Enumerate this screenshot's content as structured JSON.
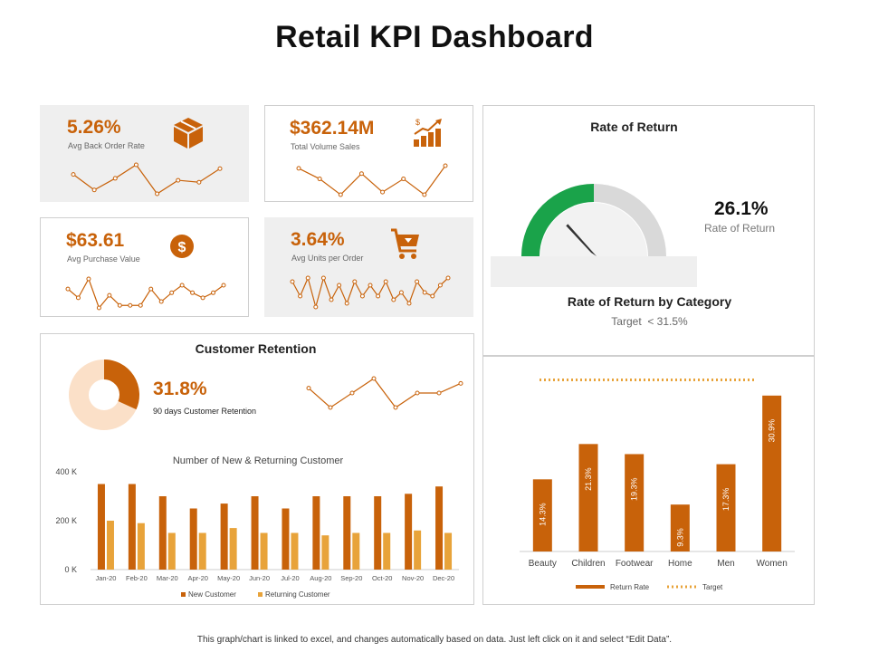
{
  "title": "Retail KPI Dashboard",
  "colors": {
    "accent": "#c8620a",
    "accent_light": "#e8a33a",
    "green": "#1aa34a",
    "gauge_gray": "#d9d9d9",
    "card_gray": "#efefef"
  },
  "kpis": [
    {
      "value": "5.26%",
      "label": "Avg Back Order Rate",
      "icon": "box-icon",
      "spark": [
        30,
        22,
        28,
        35,
        20,
        27,
        26,
        33
      ]
    },
    {
      "value": "$362.14M",
      "label": "Total Volume Sales",
      "icon": "growth-bars-icon",
      "spark": [
        32,
        28,
        22,
        30,
        23,
        28,
        22,
        33
      ]
    },
    {
      "value": "$63.61",
      "label": "Avg Purchase Value",
      "icon": "dollar-coin-icon",
      "spark": [
        25,
        18,
        33,
        10,
        20,
        12,
        12,
        12,
        25,
        15,
        22,
        28,
        22,
        18,
        22,
        28
      ]
    },
    {
      "value": "3.64%",
      "label": "Avg Units per Order",
      "icon": "shopping-cart-icon",
      "spark": [
        28,
        20,
        30,
        14,
        30,
        18,
        26,
        16,
        28,
        20,
        26,
        20,
        28,
        18,
        22,
        16,
        28,
        22,
        20,
        26,
        30
      ]
    }
  ],
  "rate_of_return": {
    "title": "Rate of Return",
    "value": "26.1%",
    "label": "Rate of Return",
    "gauge_fraction": 0.261
  },
  "category": {
    "title": "Rate of Return by Category",
    "target_text": "Target  < 31.5%"
  },
  "retention": {
    "title": "Customer Retention",
    "value": "31.8%",
    "label": "90 days Customer Retention",
    "donut_fraction": 0.318,
    "spark": [
      28,
      20,
      26,
      32,
      20,
      26,
      26,
      30
    ]
  },
  "chart_data": [
    {
      "type": "bar",
      "title": "Number of New & Returning Customer",
      "categories": [
        "Jan-20",
        "Feb-20",
        "Mar-20",
        "Apr-20",
        "May-20",
        "Jun-20",
        "Jul-20",
        "Aug-20",
        "Sep-20",
        "Oct-20",
        "Nov-20",
        "Dec-20"
      ],
      "series": [
        {
          "name": "New Customer",
          "values": [
            350,
            350,
            300,
            250,
            270,
            300,
            250,
            300,
            300,
            300,
            310,
            340
          ]
        },
        {
          "name": "Returning Customer",
          "values": [
            200,
            190,
            150,
            150,
            170,
            150,
            150,
            140,
            150,
            150,
            160,
            150
          ]
        }
      ],
      "ylim": [
        0,
        400
      ],
      "yticks": [
        "400 K",
        "200 K",
        "0 K"
      ],
      "legend": [
        "New Customer",
        "Returning Customer"
      ]
    },
    {
      "type": "bar",
      "title": "Rate of Return by Category",
      "categories": [
        "Beauty",
        "Children",
        "Footwear",
        "Home",
        "Men",
        "Women"
      ],
      "values": [
        14.3,
        21.3,
        19.3,
        9.3,
        17.3,
        30.9
      ],
      "labels": [
        "14.3%",
        "21.3%",
        "19.3%",
        "9.3%",
        "17.3%",
        "30.9%"
      ],
      "target": 31.5,
      "ylim": [
        0,
        35
      ],
      "legend": [
        "Return Rate",
        "Target"
      ]
    }
  ],
  "footer": "This graph/chart is linked to excel, and changes automatically based on data. Just left click on it and select “Edit Data”."
}
